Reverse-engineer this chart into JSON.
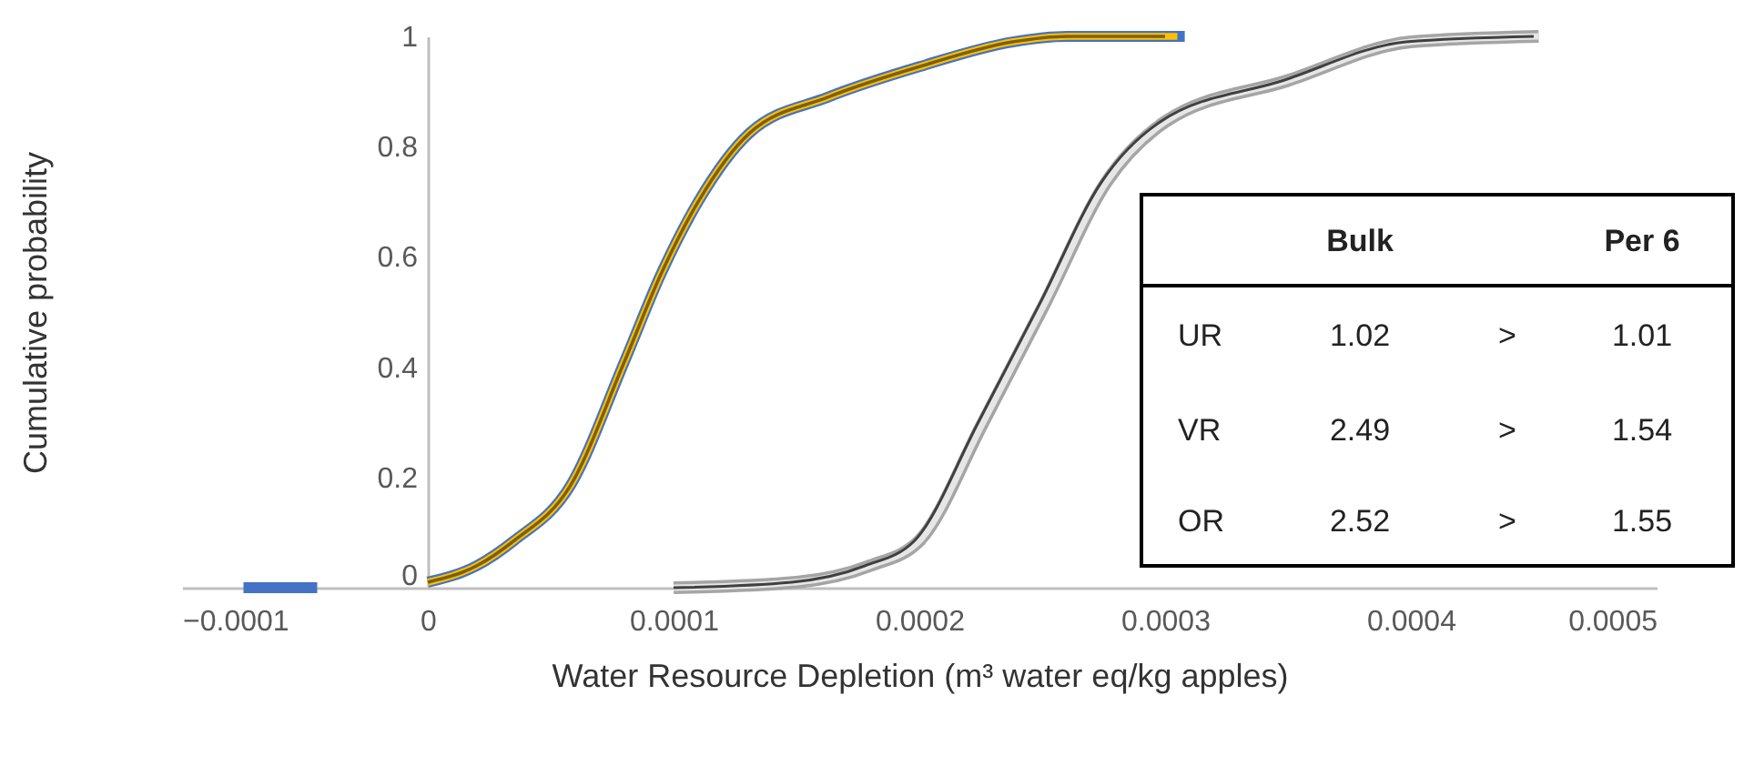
{
  "chart_data": {
    "type": "line",
    "xlabel": "Water Resource Depletion (m³ water eq/kg apples)",
    "ylabel": "Cumulative probability",
    "xlim": [
      -0.0001,
      0.0005
    ],
    "xticks": [
      -0.0001,
      0,
      0.0001,
      0.0002,
      0.0003,
      0.0004,
      0.0005
    ],
    "ylim": [
      0,
      1
    ],
    "yticks": [
      0,
      0.2,
      0.4,
      0.6,
      0.8,
      1
    ],
    "grid": false,
    "marker": "none",
    "line_style": "solid",
    "series": [
      {
        "color": "#4472c4",
        "x": [
          -7.5e-05,
          -4.5e-05,
          -2e-05,
          0,
          2e-05,
          3.5e-05,
          5.8e-05,
          8e-05,
          9.5e-05,
          0.00011,
          0.000131,
          0.000163,
          0.0002,
          0.000238,
          0.00026,
          0.000308
        ],
        "values": [
          0,
          0,
          null,
          0.01,
          0.04,
          0.085,
          0.185,
          0.41,
          0.57,
          0.7,
          0.825,
          0.89,
          0.945,
          0.99,
          1,
          1
        ]
      },
      {
        "color": "#ffc000",
        "x": [
          0,
          2e-05,
          3.5e-05,
          5.8e-05,
          8e-05,
          9.5e-05,
          0.00011,
          0.000131,
          0.000163,
          0.0002,
          0.000238,
          0.00026,
          0.000305
        ],
        "values": [
          0.01,
          0.04,
          0.085,
          0.185,
          0.41,
          0.57,
          0.7,
          0.825,
          0.89,
          0.945,
          0.99,
          1,
          1
        ]
      },
      {
        "color": "#7f6000",
        "x": [
          0,
          2e-05,
          3.5e-05,
          5.8e-05,
          8e-05,
          9.5e-05,
          0.00011,
          0.000131,
          0.000163,
          0.0002,
          0.000238,
          0.00026,
          0.0003
        ],
        "values": [
          0.01,
          0.04,
          0.085,
          0.185,
          0.41,
          0.57,
          0.7,
          0.825,
          0.89,
          0.945,
          0.99,
          1,
          1
        ]
      },
      {
        "color": "#a5a5a5",
        "x": [
          0.0001,
          0.00015,
          0.00018,
          0.0002,
          0.000226,
          0.000251,
          0.000276,
          0.0003,
          0.00035,
          0.0004,
          0.000452
        ],
        "values": [
          0,
          0.01,
          0.04,
          0.085,
          0.3,
          0.515,
          0.735,
          0.845,
          0.92,
          0.99,
          1
        ]
      },
      {
        "color": "#e7e6e6",
        "x": [
          0.0001,
          0.00015,
          0.00018,
          0.0002,
          0.000226,
          0.000251,
          0.000276,
          0.0003,
          0.00035,
          0.0004,
          0.000452
        ],
        "values": [
          0,
          0.01,
          0.04,
          0.085,
          0.3,
          0.515,
          0.735,
          0.845,
          0.92,
          0.99,
          1
        ]
      },
      {
        "color": "#404040",
        "x": [
          0.0001,
          0.000148,
          0.000178,
          0.000198,
          0.000224,
          0.000249,
          0.000274,
          0.000298,
          0.000348,
          0.000398,
          0.00045
        ],
        "values": [
          0,
          0.01,
          0.04,
          0.085,
          0.3,
          0.515,
          0.735,
          0.845,
          0.92,
          0.99,
          1
        ]
      }
    ],
    "annotations": [
      "Bulk",
      "Per 6",
      "UR",
      "1.02",
      ">",
      "1.01",
      "VR",
      "2.49",
      ">",
      "1.54",
      "OR",
      "2.52",
      ">",
      "1.55"
    ]
  }
}
